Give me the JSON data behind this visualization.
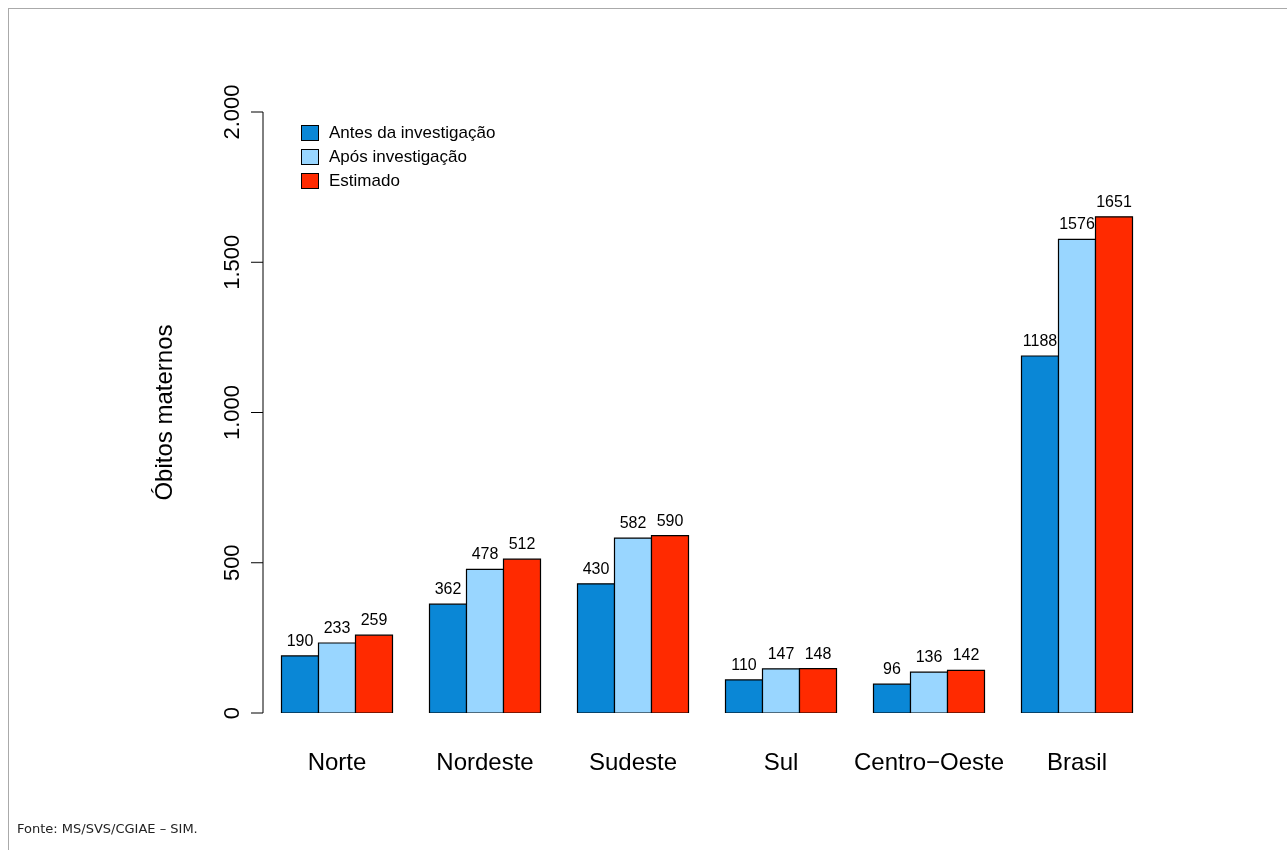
{
  "chart_data": {
    "type": "bar",
    "ylabel": "Óbitos maternos",
    "categories": [
      "Norte",
      "Nordeste",
      "Sudeste",
      "Sul",
      "Centro−Oeste",
      "Brasil"
    ],
    "series": [
      {
        "name": "Antes da investigação",
        "color": "#0a87d6",
        "values": [
          190,
          362,
          430,
          110,
          96,
          1188
        ]
      },
      {
        "name": "Após investigação",
        "color": "#99d6ff",
        "values": [
          233,
          478,
          582,
          147,
          136,
          1576
        ]
      },
      {
        "name": "Estimado",
        "color": "#ff2a00",
        "values": [
          259,
          512,
          590,
          148,
          142,
          1651
        ]
      }
    ],
    "ylim": [
      0,
      2000
    ],
    "yticks": [
      0,
      500,
      {
        "value": 1000,
        "label": "1.000"
      },
      {
        "value": 1500,
        "label": "1.500"
      },
      {
        "value": 2000,
        "label": "2.000"
      }
    ],
    "data_labels": true,
    "grid": false,
    "legend": "top left",
    "annotations": [
      "Fonte: MS/SVS/CGIAE – SIM."
    ]
  }
}
